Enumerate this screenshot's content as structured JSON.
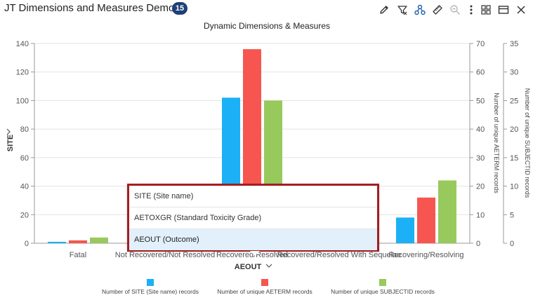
{
  "header": {
    "title": "JT Dimensions and Measures Demo",
    "badge": "15",
    "icons": [
      "pencil-icon",
      "filter-icon",
      "hierarchy-icon",
      "ruler-icon",
      "zoom-icon",
      "more-vertical-icon",
      "layout-icon",
      "window-icon",
      "close-icon"
    ]
  },
  "chart_data": {
    "type": "bar",
    "title": "Dynamic Dimensions & Measures",
    "categories": [
      "Fatal",
      "Not Recovered/Not Resolved",
      "Recovered/Resolved",
      "Recovered/Resolved With Sequelae",
      "Recovering/Resolving"
    ],
    "series": [
      {
        "name": "Number of SITE  (Site name) records",
        "axis": "left",
        "color": "#1cb0f6",
        "values": [
          1,
          1,
          102,
          0,
          18
        ]
      },
      {
        "name": "Number of unique AETERM records",
        "axis": "right1",
        "color": "#f6564f",
        "values": [
          1,
          1,
          68,
          0,
          16
        ]
      },
      {
        "name": "Number of unique SUBJECTID records",
        "axis": "right2",
        "color": "#98c95c",
        "values": [
          1,
          1,
          25,
          0,
          11
        ]
      }
    ],
    "axes": {
      "left": {
        "min": 0,
        "max": 140,
        "ticks": [
          0,
          20,
          40,
          60,
          80,
          100,
          120,
          140
        ],
        "label": "SITE"
      },
      "right1": {
        "min": 0,
        "max": 70,
        "ticks": [
          0,
          10,
          20,
          30,
          40,
          50,
          60,
          70
        ],
        "label": "Number of unique AETERM records"
      },
      "right2": {
        "min": 0,
        "max": 35,
        "ticks": [
          0,
          5,
          10,
          15,
          20,
          25,
          30,
          35
        ],
        "label": "Number of unique SUBJECTID records"
      }
    },
    "xlabel": "AEOUT",
    "grid": true,
    "legend": "bottom"
  },
  "dropdown": {
    "options": [
      "SITE (Site name)",
      "AETOXGR (Standard Toxicity Grade)",
      "AEOUT (Outcome)"
    ],
    "selected": "AEOUT (Outcome)"
  },
  "colors": {
    "badge": "#1f3f78",
    "highlight_border": "#a31e22",
    "selected_bg": "#e1f0fb"
  }
}
